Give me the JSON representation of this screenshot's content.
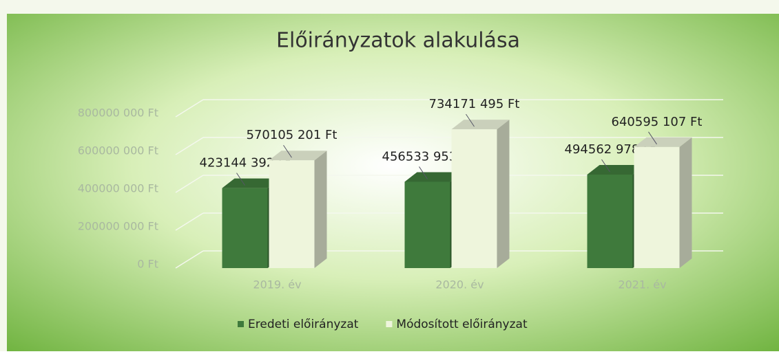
{
  "chart_data": {
    "type": "bar3d",
    "title": "Előirányzatok alakulása",
    "categories": [
      "2019. év",
      "2020. év",
      "2021. év"
    ],
    "series": [
      {
        "name": "Eredeti előirányzat",
        "color": "#3f7a3c",
        "values": [
          423144392,
          456533953,
          494562978
        ],
        "value_labels": [
          "423144 392 Ft",
          "456533 953 Ft",
          "494562 978 Ft"
        ]
      },
      {
        "name": "Módosított előirányzat",
        "color": "#eef5dc",
        "values": [
          570105201,
          734171495,
          640595107
        ],
        "value_labels": [
          "570105 201 Ft",
          "734171 495 Ft",
          "640595 107 Ft"
        ]
      }
    ],
    "ylim": [
      0,
      1000000000
    ],
    "yticks": [
      {
        "value": 0,
        "label": "0 Ft"
      },
      {
        "value": 200000000,
        "label": "200000 000 Ft"
      },
      {
        "value": 400000000,
        "label": "400000 000 Ft"
      },
      {
        "value": 600000000,
        "label": "600000 000 Ft"
      },
      {
        "value": 800000000,
        "label": "800000 000 Ft"
      }
    ],
    "grid": true
  }
}
